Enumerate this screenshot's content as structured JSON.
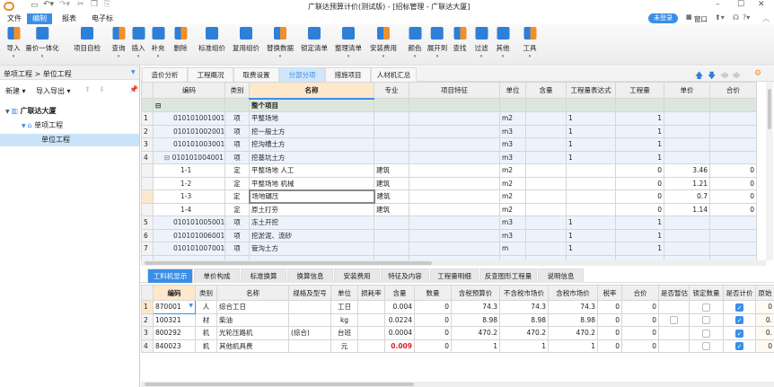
{
  "app": {
    "title": "广联达预算计价(测试版) - [招标管理 - 广联达大厦]",
    "login_badge": "未登录",
    "window_menu": "窗口",
    "brand_color": "#3a8ee6"
  },
  "menu": {
    "tabs": [
      "文件",
      "编制",
      "报表",
      "电子标"
    ],
    "active": 1
  },
  "toolbar": {
    "items": [
      {
        "label": "导入",
        "icon": "import-icon"
      },
      {
        "label": "量价一体化",
        "icon": "price-volume-icon"
      },
      {
        "label": "项目自检",
        "icon": "project-check-icon"
      },
      {
        "label": "查询",
        "icon": "query-icon"
      },
      {
        "label": "插入",
        "icon": "insert-icon"
      },
      {
        "label": "补充",
        "icon": "supplement-icon"
      },
      {
        "label": "删除",
        "icon": "delete-icon"
      },
      {
        "label": "标准组价",
        "icon": "standard-pricing-icon"
      },
      {
        "label": "复用组价",
        "icon": "reuse-pricing-icon"
      },
      {
        "label": "替换数据",
        "icon": "replace-data-icon"
      },
      {
        "label": "锁定清单",
        "icon": "lock-icon"
      },
      {
        "label": "整理清单",
        "icon": "organize-list-icon"
      },
      {
        "label": "安装费用",
        "icon": "install-fee-icon"
      },
      {
        "label": "颜色",
        "icon": "color-icon"
      },
      {
        "label": "展开到",
        "icon": "expand-icon"
      },
      {
        "label": "查找",
        "icon": "find-icon"
      },
      {
        "label": "过滤",
        "icon": "filter-icon"
      },
      {
        "label": "其他",
        "icon": "other-icon"
      },
      {
        "label": "工具",
        "icon": "tools-icon"
      }
    ]
  },
  "left": {
    "breadcrumb": "单项工程 > 单位工程",
    "new_label": "新建",
    "import_export_label": "导入导出",
    "tree": [
      {
        "label": "广联达大厦",
        "level": 0
      },
      {
        "label": "单项工程",
        "level": 1
      },
      {
        "label": "单位工程",
        "level": 2,
        "selected": true
      }
    ]
  },
  "main_tabs": {
    "items": [
      "造价分析",
      "工程概况",
      "取费设置",
      "分部分项",
      "措施项目",
      "人材机汇总"
    ],
    "active": 3
  },
  "upper_grid": {
    "headers": [
      "",
      "编码",
      "类别",
      "名称",
      "专业",
      "项目特征",
      "单位",
      "含量",
      "工程量表达式",
      "工程量",
      "单价",
      "合价"
    ],
    "group": {
      "name": "整个项目"
    },
    "rows": [
      {
        "no": "1",
        "code": "010101001001",
        "type": "项",
        "name": "平整场地",
        "major": "",
        "unit": "m2",
        "content": "",
        "expr": "1",
        "qty": "1",
        "price": "",
        "total": "",
        "kind": "qing"
      },
      {
        "no": "2",
        "code": "010101002001",
        "type": "项",
        "name": "挖一般土方",
        "major": "",
        "unit": "m3",
        "content": "",
        "expr": "1",
        "qty": "1",
        "price": "",
        "total": "",
        "kind": "qing"
      },
      {
        "no": "3",
        "code": "010101003001",
        "type": "项",
        "name": "挖沟槽土方",
        "major": "",
        "unit": "m3",
        "content": "",
        "expr": "1",
        "qty": "1",
        "price": "",
        "total": "",
        "kind": "qing"
      },
      {
        "no": "4",
        "code": "010101004001",
        "type": "项",
        "name": "挖基坑土方",
        "major": "",
        "unit": "m3",
        "content": "",
        "expr": "1",
        "qty": "1",
        "price": "",
        "total": "",
        "kind": "qing"
      },
      {
        "no": "",
        "code": "1-1",
        "type": "定",
        "name": "平整场地 人工",
        "major": "建筑",
        "unit": "m2",
        "content": "",
        "expr": "",
        "qty": "0",
        "price": "3.46",
        "total": "0",
        "kind": "ding"
      },
      {
        "no": "",
        "code": "1-2",
        "type": "定",
        "name": "平整场地 机械",
        "major": "建筑",
        "unit": "m2",
        "content": "",
        "expr": "",
        "qty": "0",
        "price": "1.21",
        "total": "0",
        "kind": "ding"
      },
      {
        "no": "",
        "code": "1-3",
        "type": "定",
        "name": "场地碾压",
        "major": "建筑",
        "unit": "m2",
        "content": "",
        "expr": "",
        "qty": "0",
        "price": "0.7",
        "total": "0",
        "kind": "ding"
      },
      {
        "no": "",
        "code": "1-4",
        "type": "定",
        "name": "原土打夯",
        "major": "建筑",
        "unit": "m2",
        "content": "",
        "expr": "",
        "qty": "0",
        "price": "1.14",
        "total": "0",
        "kind": "ding"
      },
      {
        "no": "5",
        "code": "010101005001",
        "type": "项",
        "name": "冻土开挖",
        "major": "",
        "unit": "m3",
        "content": "",
        "expr": "1",
        "qty": "1",
        "price": "",
        "total": "",
        "kind": "qing"
      },
      {
        "no": "6",
        "code": "010101006001",
        "type": "项",
        "name": "挖淤泥、流砂",
        "major": "",
        "unit": "m3",
        "content": "",
        "expr": "1",
        "qty": "1",
        "price": "",
        "total": "",
        "kind": "qing"
      },
      {
        "no": "7",
        "code": "010101007001",
        "type": "项",
        "name": "管沟土方",
        "major": "",
        "unit": "m",
        "content": "",
        "expr": "1",
        "qty": "1",
        "price": "",
        "total": "",
        "kind": "qing"
      }
    ]
  },
  "lower_tabs": {
    "items": [
      "工料机显示",
      "单价构成",
      "标准换算",
      "换算信息",
      "安装费用",
      "特征及内容",
      "工程量明细",
      "反查图形工程量",
      "说明信息"
    ],
    "active": 0
  },
  "lower_grid": {
    "headers": [
      "",
      "编码",
      "类别",
      "名称",
      "规格及型号",
      "单位",
      "损耗率",
      "含量",
      "数量",
      "含税预算价",
      "不含税市场价",
      "含税市场价",
      "税率",
      "合价",
      "是否暂估",
      "锁定数量",
      "是否计价",
      "原始"
    ],
    "rows": [
      {
        "no": "1",
        "code": "870001",
        "type": "人",
        "name": "综合工日",
        "spec": "",
        "unit": "工日",
        "loss": "",
        "content": "0.004",
        "qty": "0",
        "tax_budget": "74.3",
        "market_ex": "74.3",
        "market_in": "74.3",
        "rate": "0",
        "total": "0",
        "provisional": null,
        "lock": false,
        "priced": true,
        "orig": "0"
      },
      {
        "no": "2",
        "code": "100321",
        "type": "材",
        "name": "柴油",
        "spec": "",
        "unit": "kg",
        "loss": "",
        "content": "0.0224",
        "qty": "0",
        "tax_budget": "8.98",
        "market_ex": "8.98",
        "market_in": "8.98",
        "rate": "0",
        "total": "0",
        "provisional": false,
        "lock": false,
        "priced": true,
        "orig": "0."
      },
      {
        "no": "3",
        "code": "800292",
        "type": "机",
        "name": "光轮压路机",
        "spec": "(综合)",
        "unit": "台班",
        "loss": "",
        "content": "0.0004",
        "qty": "0",
        "tax_budget": "470.2",
        "market_ex": "470.2",
        "market_in": "470.2",
        "rate": "0",
        "total": "0",
        "provisional": null,
        "lock": false,
        "priced": true,
        "orig": "0."
      },
      {
        "no": "4",
        "code": "840023",
        "type": "机",
        "name": "其他机具费",
        "spec": "",
        "unit": "元",
        "loss": "",
        "content": "0.009",
        "qty": "0",
        "tax_budget": "1",
        "market_ex": "1",
        "market_in": "1",
        "rate": "0",
        "total": "0",
        "provisional": null,
        "lock": false,
        "priced": true,
        "orig": "0",
        "content_color": "#e02020"
      }
    ]
  }
}
